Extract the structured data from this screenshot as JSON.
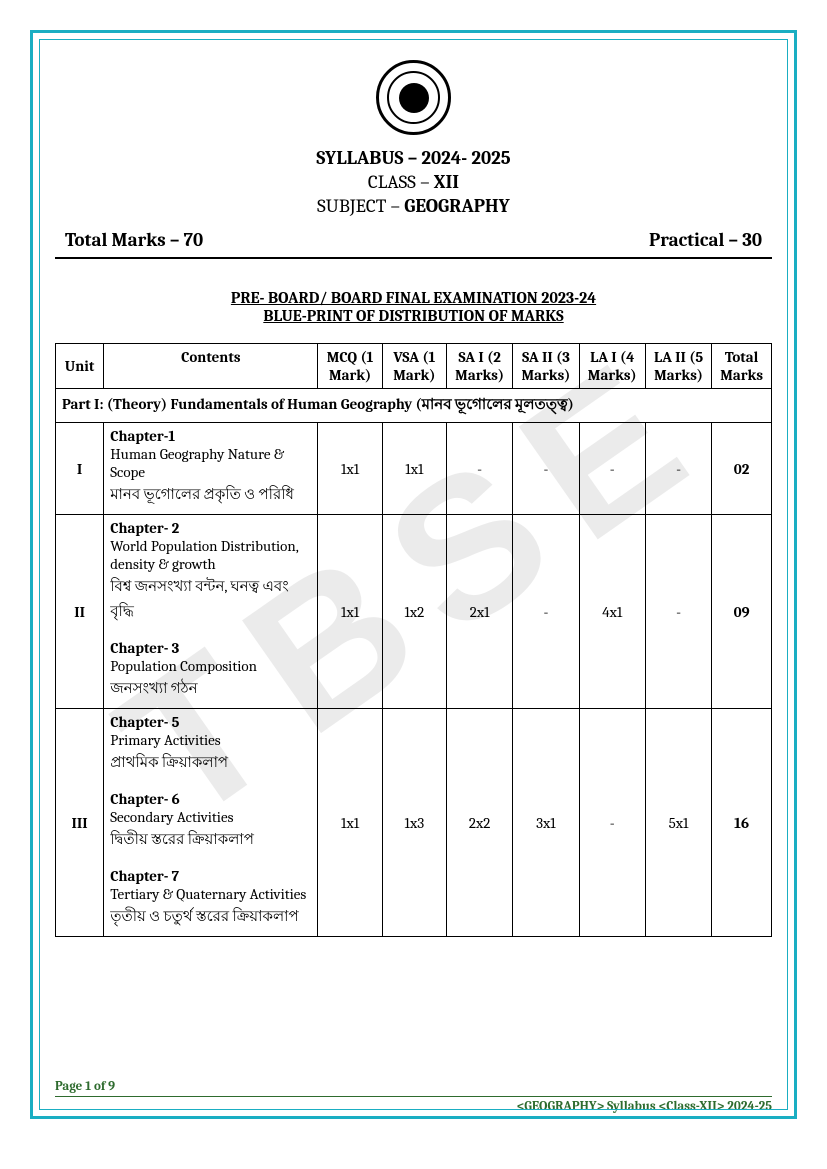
{
  "watermark": "TBSE",
  "header": {
    "syllabus_label": "SYLLABUS – ",
    "syllabus_year": "2024- 2025",
    "class_label": "CLASS – ",
    "class_value": "XII",
    "subject_label": "SUBJECT – ",
    "subject_value": "GEOGRAPHY",
    "total_marks": "Total Marks – 70",
    "practical": "Practical – 30"
  },
  "exam_heading": "PRE- BOARD/ BOARD FINAL EXAMINATION 2023-24",
  "blueprint_heading": "BLUE-PRINT OF DISTRIBUTION OF MARKS",
  "columns": {
    "unit": "Unit",
    "contents": "Contents",
    "mcq": "MCQ (1 Mark)",
    "vsa": "VSA (1 Mark)",
    "sa1": "SA I (2 Marks)",
    "sa2": "SA II (3 Marks)",
    "la1": "LA I (4 Marks)",
    "la2": "LA II (5 Marks)",
    "total": "Total Marks"
  },
  "part_row": "Part I:  (Theory) Fundamentals of Human Geography (মানব ভূগোলের মূলতত্ত্ব)",
  "rows": [
    {
      "unit": "I",
      "contents_html": "ch1",
      "mcq": "1x1",
      "vsa": "1x1",
      "sa1": "-",
      "sa2": "-",
      "la1": "-",
      "la2": "-",
      "total": "02"
    },
    {
      "unit": "II",
      "contents_html": "ch2_3",
      "mcq": "1x1",
      "vsa": "1x2",
      "sa1": "2x1",
      "sa2": "-",
      "la1": "4x1",
      "la2": "-",
      "total": "09"
    },
    {
      "unit": "III",
      "contents_html": "ch5_6_7",
      "mcq": "1x1",
      "vsa": "1x3",
      "sa1": "2x2",
      "sa2": "3x1",
      "la1": "-",
      "la2": "5x1",
      "total": "16"
    }
  ],
  "chapters": {
    "ch1": {
      "title": "Chapter-1",
      "line1": "Human Geography Nature & Scope",
      "line2": "মানব ভূগোলের প্রকৃতি ও পরিধি"
    },
    "ch2": {
      "title": "Chapter- 2",
      "line1": "World Population Distribution, density & growth",
      "line2": "বিশ্ব জনসংখ্যা বন্টন, ঘনত্ব এবং বৃদ্ধি"
    },
    "ch3": {
      "title": "Chapter- 3",
      "line1": "Population  Composition",
      "line2": "জনসংখ্যা গঠন"
    },
    "ch5": {
      "title": "Chapter- 5",
      "line1": "Primary Activities",
      "line2": "প্রাথমিক ক্রিয়াকলাপ"
    },
    "ch6": {
      "title": "Chapter- 6",
      "line1": "Secondary Activities",
      "line2": "দ্বিতীয় স্তরের ক্রিয়াকলাপ"
    },
    "ch7": {
      "title": "Chapter- 7",
      "line1": "Tertiary & Quaternary Activities",
      "line2": "তৃতীয় ও চতুর্থ স্তরের ক্রিয়াকলাপ"
    }
  },
  "footer": {
    "page": "Page 1 of 9",
    "sub": "<GEOGRAPHY> Syllabus <Class-XII> 2024-25"
  },
  "styles": {
    "border_color": "#1aaec2",
    "footer_color": "#2e6b2e",
    "watermark_color": "rgba(0,0,0,0.08)"
  }
}
